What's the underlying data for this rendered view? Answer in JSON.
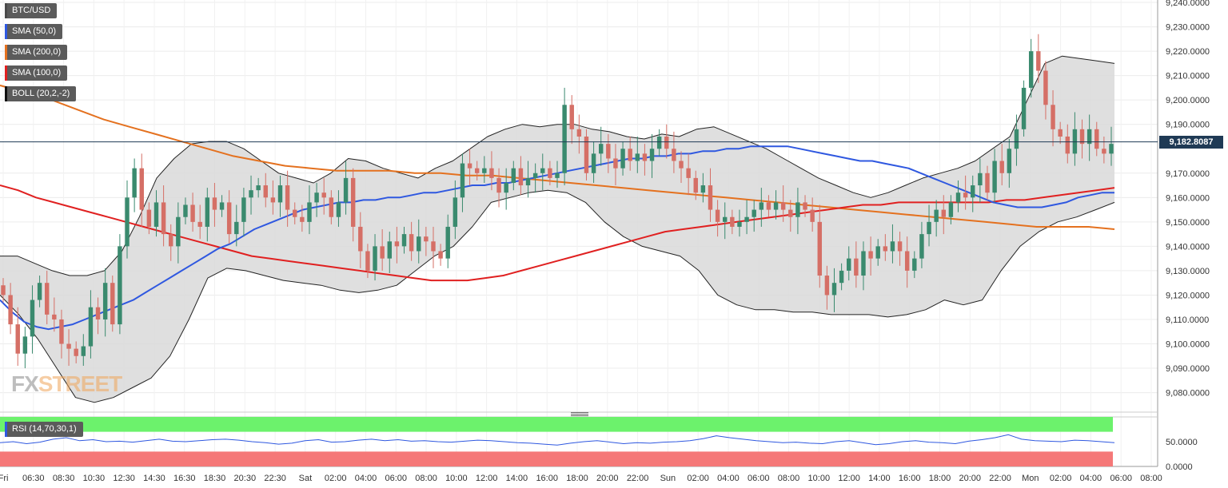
{
  "indicators": [
    {
      "label": "BTC/USD",
      "color": "#4a4a4a"
    },
    {
      "label": "SMA (50,0)",
      "color": "#2f58e0"
    },
    {
      "label": "SMA (200,0)",
      "color": "#e4711f"
    },
    {
      "label": "SMA (100,0)",
      "color": "#e02020"
    },
    {
      "label": "BOLL (20,2,-2)",
      "color": "#111111"
    }
  ],
  "rsi_label": "RSI (14,70,30,1)",
  "current_price": "9,182.8087",
  "watermark": {
    "fx": "FX",
    "street": "STREET"
  },
  "price_axis_labels": [
    "9,240.0000",
    "9,230.0000",
    "9,220.0000",
    "9,210.0000",
    "9,200.0000",
    "9,190.0000",
    "9,170.0000",
    "9,160.0000",
    "9,150.0000",
    "9,140.0000",
    "9,130.0000",
    "9,120.0000",
    "9,110.0000",
    "9,100.0000",
    "9,090.0000",
    "9,080.0000"
  ],
  "rsi_axis_labels": [
    "50.0000",
    "0.0000"
  ],
  "time_labels": [
    "Fri",
    "06:30",
    "08:30",
    "10:30",
    "12:30",
    "14:30",
    "16:30",
    "18:30",
    "20:30",
    "22:30",
    "Sat",
    "02:00",
    "04:00",
    "06:00",
    "08:00",
    "10:00",
    "12:00",
    "14:00",
    "16:00",
    "18:00",
    "20:00",
    "22:00",
    "Sun",
    "02:00",
    "04:00",
    "06:00",
    "08:00",
    "10:00",
    "12:00",
    "14:00",
    "16:00",
    "18:00",
    "20:00",
    "22:00",
    "Mon",
    "02:00",
    "04:00",
    "06:00",
    "08:00"
  ],
  "colors": {
    "up": "#3a8a6e",
    "down": "#d56f66",
    "boll_fill": "#d9d9d9",
    "rsi_line": "#2f58e0",
    "overbought": "#6cf26c",
    "oversold": "#f57878"
  },
  "chart_data": {
    "type": "candlestick",
    "symbol": "BTC/USD",
    "ylim": [
      9072,
      9241
    ],
    "rsi_ylim": [
      0,
      100
    ],
    "closes": [
      9120,
      9108,
      9096,
      9103,
      9118,
      9125,
      9112,
      9110,
      9100,
      9098,
      9095,
      9099,
      9115,
      9110,
      9125,
      9108,
      9140,
      9160,
      9172,
      9155,
      9148,
      9158,
      9145,
      9140,
      9152,
      9157,
      9150,
      9148,
      9160,
      9155,
      9158,
      9145,
      9150,
      9160,
      9163,
      9165,
      9160,
      9158,
      9165,
      9155,
      9152,
      9150,
      9158,
      9162,
      9160,
      9152,
      9158,
      9168,
      9148,
      9138,
      9130,
      9140,
      9135,
      9142,
      9140,
      9145,
      9138,
      9144,
      9142,
      9138,
      9135,
      9148,
      9160,
      9174,
      9172,
      9170,
      9172,
      9168,
      9162,
      9166,
      9172,
      9165,
      9168,
      9170,
      9172,
      9168,
      9170,
      9198,
      9188,
      9185,
      9170,
      9178,
      9182,
      9176,
      9172,
      9180,
      9175,
      9178,
      9175,
      9180,
      9185,
      9180,
      9175,
      9172,
      9168,
      9162,
      9165,
      9155,
      9150,
      9152,
      9148,
      9150,
      9152,
      9155,
      9158,
      9155,
      9158,
      9155,
      9152,
      9158,
      9155,
      9150,
      9128,
      9120,
      9125,
      9130,
      9135,
      9128,
      9138,
      9135,
      9140,
      9138,
      9142,
      9138,
      9130,
      9135,
      9145,
      9150,
      9155,
      9152,
      9158,
      9162,
      9160,
      9165,
      9170,
      9162,
      9175,
      9170,
      9180,
      9188,
      9205,
      9220,
      9212,
      9198,
      9188,
      9185,
      9178,
      9188,
      9182,
      9188,
      9180,
      9178,
      9182
    ],
    "sma50": [
      9118,
      9113,
      9109,
      9107,
      9106,
      9107,
      9108,
      9110,
      9112,
      9114,
      9116,
      9118,
      9121,
      9124,
      9127,
      9130,
      9133,
      9136,
      9139,
      9141,
      9144,
      9147,
      9149,
      9151,
      9153,
      9155,
      9156,
      9157,
      9158,
      9158,
      9159,
      9159,
      9160,
      9160,
      9161,
      9162,
      9162,
      9163,
      9164,
      9165,
      9165,
      9166,
      9166,
      9167,
      9168,
      9169,
      9170,
      9171,
      9172,
      9173,
      9174,
      9175,
      9176,
      9176,
      9177,
      9177,
      9178,
      9178,
      9179,
      9179,
      9180,
      9180,
      9181,
      9181,
      9181,
      9181,
      9180,
      9179,
      9178,
      9177,
      9176,
      9175,
      9175,
      9174,
      9173,
      9172,
      9170,
      9168,
      9166,
      9164,
      9162,
      9160,
      9158,
      9157,
      9156,
      9156,
      9156,
      9157,
      9158,
      9160,
      9161,
      9162,
      9162
    ],
    "sma100": [
      9165,
      9163,
      9160,
      9158,
      9156,
      9154,
      9152,
      9150,
      9148,
      9146,
      9144,
      9142,
      9140,
      9138,
      9136,
      9135,
      9134,
      9133,
      9132,
      9131,
      9130,
      9129,
      9128,
      9127,
      9126,
      9126,
      9126,
      9127,
      9128,
      9130,
      9132,
      9134,
      9136,
      9138,
      9140,
      9142,
      9144,
      9146,
      9147,
      9148,
      9149,
      9150,
      9151,
      9152,
      9153,
      9154,
      9155,
      9156,
      9157,
      9157,
      9158,
      9158,
      9158,
      9158,
      9158,
      9158,
      9159,
      9159,
      9160,
      9161,
      9162,
      9163,
      9164
    ],
    "sma200": [
      9206,
      9203,
      9200,
      9196,
      9192,
      9189,
      9186,
      9183,
      9180,
      9177,
      9175,
      9173,
      9172,
      9171,
      9171,
      9171,
      9170,
      9170,
      9169,
      9169,
      9168,
      9167,
      9166,
      9165,
      9164,
      9163,
      9162,
      9161,
      9160,
      9159,
      9158,
      9157,
      9156,
      9155,
      9154,
      9153,
      9152,
      9151,
      9150,
      9149,
      9148,
      9148,
      9148,
      9147
    ],
    "rsi": [
      48,
      50,
      46,
      49,
      55,
      58,
      52,
      54,
      50,
      51,
      49,
      52,
      55,
      51,
      50,
      52,
      54,
      55,
      53,
      50,
      48,
      45,
      47,
      52,
      54,
      49,
      50,
      53,
      55,
      52,
      54,
      51,
      52,
      50,
      49,
      51,
      53,
      52,
      50,
      48,
      47,
      45,
      43,
      47,
      50,
      52,
      49,
      46,
      48,
      47,
      49,
      50,
      52,
      56,
      62,
      58,
      55,
      52,
      50,
      48,
      49,
      47,
      46,
      50,
      52,
      48,
      44,
      46,
      50,
      52,
      49,
      48,
      46,
      51,
      54,
      58,
      64,
      55,
      52,
      51,
      50,
      53,
      52,
      50,
      48
    ],
    "boll_upper": [
      9136,
      9136,
      9133,
      9130,
      9128,
      9128,
      9130,
      9138,
      9152,
      9168,
      9176,
      9182,
      9183,
      9183,
      9180,
      9175,
      9170,
      9168,
      9166,
      9170,
      9176,
      9175,
      9172,
      9170,
      9168,
      9172,
      9175,
      9180,
      9185,
      9188,
      9190,
      9189,
      9190,
      9190,
      9188,
      9187,
      9185,
      9184,
      9186,
      9185,
      9188,
      9189,
      9186,
      9183,
      9180,
      9176,
      9172,
      9168,
      9165,
      9162,
      9160,
      9162,
      9165,
      9168,
      9170,
      9172,
      9175,
      9180,
      9185,
      9200,
      9215,
      9218,
      9217,
      9216,
      9215
    ],
    "boll_lower": [
      9120,
      9112,
      9102,
      9090,
      9078,
      9076,
      9078,
      9082,
      9086,
      9095,
      9110,
      9127,
      9131,
      9130,
      9128,
      9126,
      9125,
      9124,
      9122,
      9121,
      9122,
      9124,
      9130,
      9136,
      9140,
      9148,
      9158,
      9160,
      9162,
      9163,
      9162,
      9158,
      9150,
      9144,
      9140,
      9138,
      9136,
      9130,
      9120,
      9116,
      9114,
      9114,
      9113,
      9113,
      9112,
      9112,
      9112,
      9111,
      9112,
      9114,
      9118,
      9116,
      9118,
      9130,
      9140,
      9146,
      9150,
      9152,
      9155,
      9158
    ]
  }
}
